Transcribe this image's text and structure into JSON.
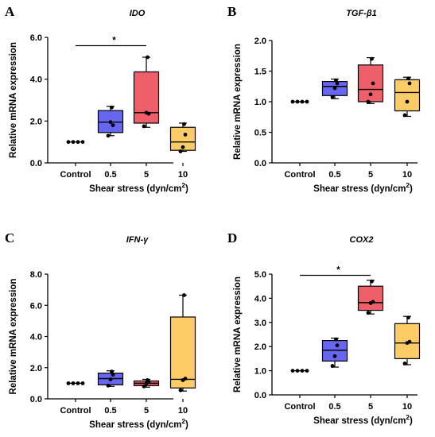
{
  "chart_data": [
    {
      "type": "box",
      "panel": "A",
      "title": "IDO",
      "xlabel": "Shear stress (dyn/cm",
      "xlabel_sup": "2",
      "xlabel_end": ")",
      "ylabel": "Relative mRNA expression",
      "categories": [
        "Control",
        "0.5",
        "5",
        "10"
      ],
      "ylim": [
        0,
        6
      ],
      "yticks": [
        "0.0",
        "2.0",
        "4.0",
        "6.0"
      ],
      "ytick_values": [
        0,
        2,
        4,
        6
      ],
      "colors": [
        "#ffffff",
        "#6666ee",
        "#ee5f6a",
        "#fdcc66"
      ],
      "boxes": [
        {
          "min": 1.0,
          "q1": 1.0,
          "median": 1.0,
          "q3": 1.0,
          "max": 1.0,
          "points": [
            1.0,
            1.0,
            1.0,
            1.0
          ]
        },
        {
          "min": 1.3,
          "q1": 1.45,
          "median": 1.95,
          "q3": 2.5,
          "max": 2.7,
          "points": [
            1.3,
            1.95,
            1.8,
            2.65
          ]
        },
        {
          "min": 1.7,
          "q1": 1.9,
          "median": 2.4,
          "q3": 4.35,
          "max": 5.05,
          "points": [
            1.75,
            2.4,
            2.35,
            5.05
          ]
        },
        {
          "min": 0.55,
          "q1": 0.6,
          "median": 1.0,
          "q3": 1.7,
          "max": 1.9,
          "points": [
            0.55,
            0.75,
            1.35,
            1.85
          ]
        }
      ],
      "significance": {
        "from": 0,
        "to": 2,
        "y": 5.6,
        "label": "*"
      }
    },
    {
      "type": "box",
      "panel": "B",
      "title": "TGF-β1",
      "xlabel": "Shear stress (dyn/cm",
      "xlabel_sup": "2",
      "xlabel_end": ")",
      "ylabel": "Relative mRNA expression",
      "categories": [
        "Control",
        "0.5",
        "5",
        "10"
      ],
      "ylim": [
        0,
        2
      ],
      "yticks": [
        "0.0",
        "0.5",
        "1.0",
        "1.5",
        "2.0"
      ],
      "ytick_values": [
        0,
        0.5,
        1,
        1.5,
        2
      ],
      "colors": [
        "#ffffff",
        "#6666ee",
        "#ee5f6a",
        "#fdcc66"
      ],
      "boxes": [
        {
          "min": 1.0,
          "q1": 1.0,
          "median": 1.0,
          "q3": 1.0,
          "max": 1.0,
          "points": [
            1.0,
            1.0,
            1.0,
            1.0
          ]
        },
        {
          "min": 1.05,
          "q1": 1.1,
          "median": 1.25,
          "q3": 1.33,
          "max": 1.37,
          "points": [
            1.08,
            1.22,
            1.3,
            1.35
          ]
        },
        {
          "min": 0.97,
          "q1": 1.0,
          "median": 1.2,
          "q3": 1.6,
          "max": 1.72,
          "points": [
            1.0,
            1.12,
            1.3,
            1.7
          ]
        },
        {
          "min": 0.76,
          "q1": 0.85,
          "median": 1.15,
          "q3": 1.36,
          "max": 1.4,
          "points": [
            0.78,
            1.0,
            1.3,
            1.38
          ]
        }
      ],
      "significance": null
    },
    {
      "type": "box",
      "panel": "C",
      "title": "IFN-γ",
      "xlabel": "Shear stress (dyn/cm",
      "xlabel_sup": "2",
      "xlabel_end": ")",
      "ylabel": "Relative mRNA expression",
      "categories": [
        "Control",
        "0.5",
        "5",
        "10"
      ],
      "ylim": [
        0,
        8
      ],
      "yticks": [
        "0.0",
        "2.0",
        "4.0",
        "6.0",
        "8.0"
      ],
      "ytick_values": [
        0,
        2,
        4,
        6,
        8
      ],
      "colors": [
        "#ffffff",
        "#6666ee",
        "#ee5f6a",
        "#fdcc66"
      ],
      "boxes": [
        {
          "min": 1.0,
          "q1": 1.0,
          "median": 1.0,
          "q3": 1.0,
          "max": 1.0,
          "points": [
            1.0,
            1.0,
            1.0,
            1.0
          ]
        },
        {
          "min": 0.8,
          "q1": 0.9,
          "median": 1.3,
          "q3": 1.65,
          "max": 1.8,
          "points": [
            0.85,
            1.25,
            1.55,
            1.75
          ]
        },
        {
          "min": 0.75,
          "q1": 0.85,
          "median": 1.0,
          "q3": 1.15,
          "max": 1.25,
          "points": [
            0.8,
            1.0,
            1.1,
            1.2
          ]
        },
        {
          "min": 0.5,
          "q1": 0.7,
          "median": 1.25,
          "q3": 5.25,
          "max": 6.65,
          "points": [
            0.55,
            1.2,
            1.3,
            6.65
          ]
        }
      ],
      "significance": null
    },
    {
      "type": "box",
      "panel": "D",
      "title": "COX2",
      "xlabel": "Shear stress (dyn/cm",
      "xlabel_sup": "2",
      "xlabel_end": ")",
      "ylabel": "Relative mRNA expression",
      "categories": [
        "Control",
        "0.5",
        "5",
        "10"
      ],
      "ylim": [
        0,
        5
      ],
      "yticks": [
        "0.0",
        "1.0",
        "2.0",
        "3.0",
        "4.0",
        "5.0"
      ],
      "ytick_values": [
        0,
        1,
        2,
        3,
        4,
        5
      ],
      "colors": [
        "#ffffff",
        "#6666ee",
        "#ee5f6a",
        "#fdcc66"
      ],
      "boxes": [
        {
          "min": 1.0,
          "q1": 1.0,
          "median": 1.0,
          "q3": 1.0,
          "max": 1.0,
          "points": [
            1.0,
            1.0,
            1.0,
            1.0
          ]
        },
        {
          "min": 1.15,
          "q1": 1.4,
          "median": 1.85,
          "q3": 2.25,
          "max": 2.35,
          "points": [
            1.2,
            1.6,
            2.05,
            2.3
          ]
        },
        {
          "min": 3.35,
          "q1": 3.5,
          "median": 3.82,
          "q3": 4.5,
          "max": 4.75,
          "points": [
            3.4,
            3.8,
            3.85,
            4.7
          ]
        },
        {
          "min": 1.25,
          "q1": 1.5,
          "median": 2.15,
          "q3": 2.95,
          "max": 3.25,
          "points": [
            1.3,
            2.15,
            2.2,
            3.2
          ]
        }
      ],
      "significance": {
        "from": 0,
        "to": 2,
        "y": 4.95,
        "label": "*"
      }
    }
  ]
}
